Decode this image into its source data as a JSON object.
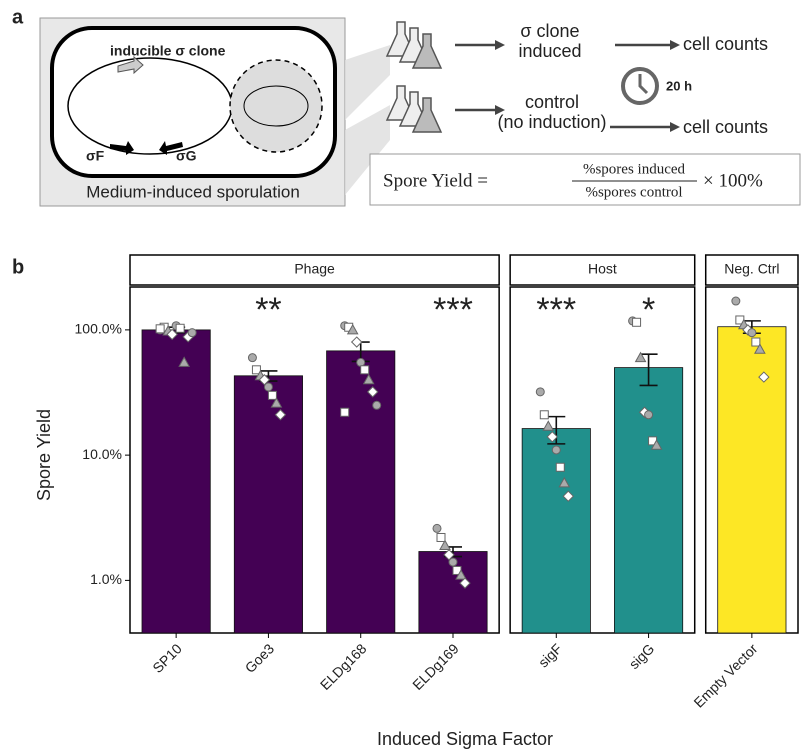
{
  "panel_a": {
    "label": "a",
    "clone_label": "inducible σ clone",
    "sigma_f": "σF",
    "sigma_g": "σG",
    "box_caption": "Medium-induced sporulation",
    "induced_line1": "σ clone",
    "induced_line2": "induced",
    "control_line1": "control",
    "control_line2": "(no induction)",
    "counts_induced": "cell counts",
    "counts_control": "cell counts",
    "time": "20 h",
    "formula_left": "Spore Yield =",
    "formula_numerator": "%spores induced",
    "formula_denominator": "%spores control",
    "formula_right": "× 100%"
  },
  "chart_data": {
    "type": "bar",
    "panel_label": "b",
    "y_label": "Spore Yield",
    "x_label": "Induced Sigma Factor",
    "log_scale": true,
    "ylim": [
      0.38,
      220
    ],
    "yticks": [
      {
        "value": 1,
        "label": "1.0%"
      },
      {
        "value": 10,
        "label": "10.0%"
      },
      {
        "value": 100,
        "label": "100.0%"
      }
    ],
    "grid": false,
    "facets": [
      {
        "label": "Phage",
        "size": 4
      },
      {
        "label": "Host",
        "size": 2
      },
      {
        "label": "Neg. Ctrl",
        "size": 1
      }
    ],
    "categories": [
      "SP10",
      "Goe3",
      "ELDg168",
      "ELDg169",
      "sigF",
      "sigG",
      "Empty Vector"
    ],
    "values": [
      100,
      43,
      68,
      1.7,
      16.3,
      50,
      106
    ],
    "errors": [
      5,
      4,
      12,
      0.15,
      4,
      14,
      12
    ],
    "colors": [
      "#440154",
      "#440154",
      "#440154",
      "#440154",
      "#21908c",
      "#21908c",
      "#fde725"
    ],
    "significance": [
      null,
      "**",
      null,
      "***",
      "***",
      "*",
      null
    ],
    "points": [
      [
        100,
        105,
        98,
        92,
        108,
        103,
        55,
        88,
        95,
        102
      ],
      [
        60,
        48,
        43,
        40,
        35,
        30,
        26,
        21
      ],
      [
        108,
        105,
        100,
        80,
        55,
        48,
        40,
        32,
        25,
        22
      ],
      [
        2.6,
        2.2,
        1.9,
        1.6,
        1.4,
        1.2,
        1.1,
        0.95
      ],
      [
        32,
        21,
        17,
        14,
        11,
        8,
        6,
        4.7
      ],
      [
        118,
        115,
        60,
        22,
        21,
        13,
        12
      ],
      [
        170,
        120,
        110,
        100,
        95,
        80,
        70,
        42
      ]
    ]
  }
}
